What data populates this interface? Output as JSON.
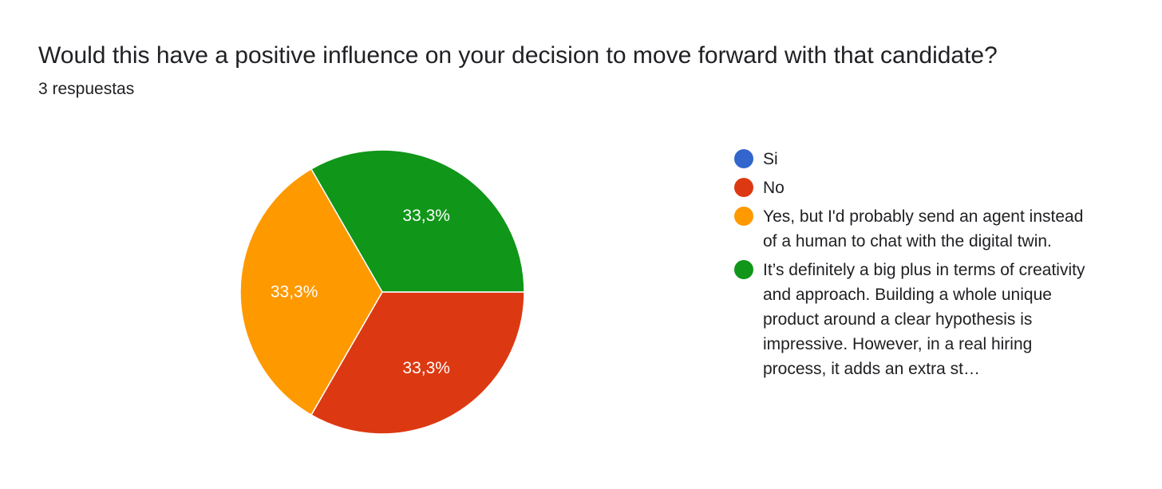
{
  "title": "Would this have a positive influence on your decision to move forward with that candidate?",
  "subtitle": "3 respuestas",
  "chart_data": {
    "type": "pie",
    "categories": [
      "Si",
      "No",
      "Yes, but I'd probably send an agent instead of a human to chat with the digital twin.",
      "It’s definitely a big plus in terms of creativity and approach. Building a whole unique product around a clear hypothesis is impressive. However, in a real hiring process, it adds an extra st…"
    ],
    "values": [
      0,
      1,
      1,
      1
    ],
    "value_labels": [
      "",
      "33,3%",
      "33,3%",
      "33,3%"
    ],
    "colors": [
      "#3366cc",
      "#dc3912",
      "#ff9900",
      "#109618"
    ],
    "legend_position": "right"
  }
}
